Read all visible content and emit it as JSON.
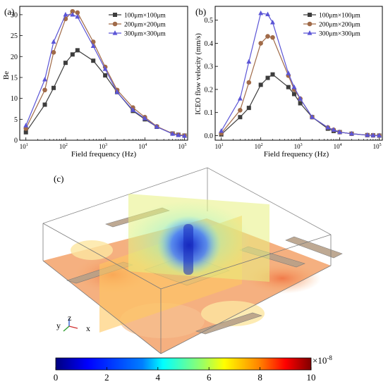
{
  "panels": {
    "a": "(a)",
    "b": "(b)",
    "c": "(c)"
  },
  "chart_data": [
    {
      "type": "line",
      "panel": "(a)",
      "xlabel": "Field frequency (Hz)",
      "ylabel": "Be",
      "xscale": "log",
      "xlim": [
        7,
        120000
      ],
      "ylim": [
        0,
        32
      ],
      "xticks": [
        {
          "v": 10,
          "label": "10",
          "sup": "1"
        },
        {
          "v": 100,
          "label": "10",
          "sup": "2"
        },
        {
          "v": 1000,
          "label": "10",
          "sup": "3"
        },
        {
          "v": 10000,
          "label": "10",
          "sup": "4"
        },
        {
          "v": 100000,
          "label": "10",
          "sup": "5"
        }
      ],
      "yticks": [
        0,
        5,
        10,
        15,
        20,
        25,
        30
      ],
      "grid": false,
      "legend_position": "top-right",
      "x": [
        10,
        30,
        50,
        100,
        150,
        200,
        500,
        1000,
        2000,
        5000,
        10000,
        20000,
        50000,
        70000,
        100000
      ],
      "series": [
        {
          "name": "100μm×100μm",
          "color": "#3d3d3d",
          "marker": "square",
          "values": [
            1.9,
            8.5,
            12.5,
            18.5,
            20.5,
            21.5,
            19.0,
            15.5,
            11.5,
            7.0,
            5.0,
            3.2,
            1.6,
            1.3,
            1.1
          ]
        },
        {
          "name": "200μm×200μm",
          "color": "#a06a48",
          "marker": "circle",
          "values": [
            2.8,
            12.0,
            21.0,
            29.0,
            30.8,
            30.5,
            23.5,
            17.5,
            12.0,
            7.8,
            5.5,
            3.3,
            1.6,
            1.3,
            1.1
          ]
        },
        {
          "name": "300μm×300μm",
          "color": "#5b55d6",
          "marker": "triangle",
          "values": [
            3.5,
            14.5,
            23.5,
            30.0,
            30.0,
            29.5,
            22.5,
            17.0,
            11.5,
            7.2,
            5.2,
            3.2,
            1.5,
            1.2,
            1.0
          ]
        }
      ]
    },
    {
      "type": "line",
      "panel": "(b)",
      "xlabel": "Field frequency (Hz)",
      "ylabel": "ICEO flow velocity (mm/s)",
      "xscale": "log",
      "xlim": [
        7,
        120000
      ],
      "ylim": [
        -0.02,
        0.56
      ],
      "xticks": [
        {
          "v": 10,
          "label": "10",
          "sup": "1"
        },
        {
          "v": 100,
          "label": "10",
          "sup": "2"
        },
        {
          "v": 1000,
          "label": "10",
          "sup": "3"
        },
        {
          "v": 10000,
          "label": "10",
          "sup": "4"
        },
        {
          "v": 100000,
          "label": "10",
          "sup": "5"
        }
      ],
      "yticks": [
        "0.0",
        "0.1",
        "0.2",
        "0.3",
        "0.4",
        "0.5"
      ],
      "grid": false,
      "legend_position": "top-right",
      "x": [
        10,
        30,
        50,
        100,
        150,
        200,
        500,
        700,
        1000,
        2000,
        5000,
        7000,
        10000,
        20000,
        50000,
        70000,
        100000
      ],
      "series": [
        {
          "name": "100μm×100μm",
          "color": "#3d3d3d",
          "marker": "square",
          "values": [
            0.005,
            0.08,
            0.12,
            0.22,
            0.25,
            0.265,
            0.21,
            0.18,
            0.14,
            0.08,
            0.03,
            0.02,
            0.015,
            0.008,
            0.002,
            0.001,
            0.0
          ]
        },
        {
          "name": "200μm×200μm",
          "color": "#a06a48",
          "marker": "circle",
          "values": [
            0.01,
            0.11,
            0.23,
            0.4,
            0.43,
            0.425,
            0.26,
            0.2,
            0.16,
            0.08,
            0.035,
            0.025,
            0.015,
            0.008,
            0.002,
            0.001,
            0.0
          ]
        },
        {
          "name": "300μm×300μm",
          "color": "#5b55d6",
          "marker": "triangle",
          "values": [
            0.02,
            0.16,
            0.32,
            0.53,
            0.525,
            0.49,
            0.27,
            0.21,
            0.16,
            0.08,
            0.035,
            0.025,
            0.015,
            0.008,
            0.002,
            0.001,
            0.0
          ]
        }
      ]
    },
    {
      "type": "heatmap",
      "panel": "(c)",
      "colorbar": {
        "min": 0,
        "max": 10,
        "ticks": [
          "0",
          "2",
          "4",
          "6",
          "8",
          "10"
        ],
        "multiplier": "×10",
        "multiplier_exp": "-8",
        "colormap": [
          "#00007f",
          "#0000ff",
          "#007fff",
          "#00ffff",
          "#7fff7f",
          "#ffff00",
          "#ff7f00",
          "#ff0000",
          "#7f0000"
        ]
      },
      "axes_labels": {
        "x": "x",
        "y": "y",
        "z": "z"
      }
    }
  ]
}
